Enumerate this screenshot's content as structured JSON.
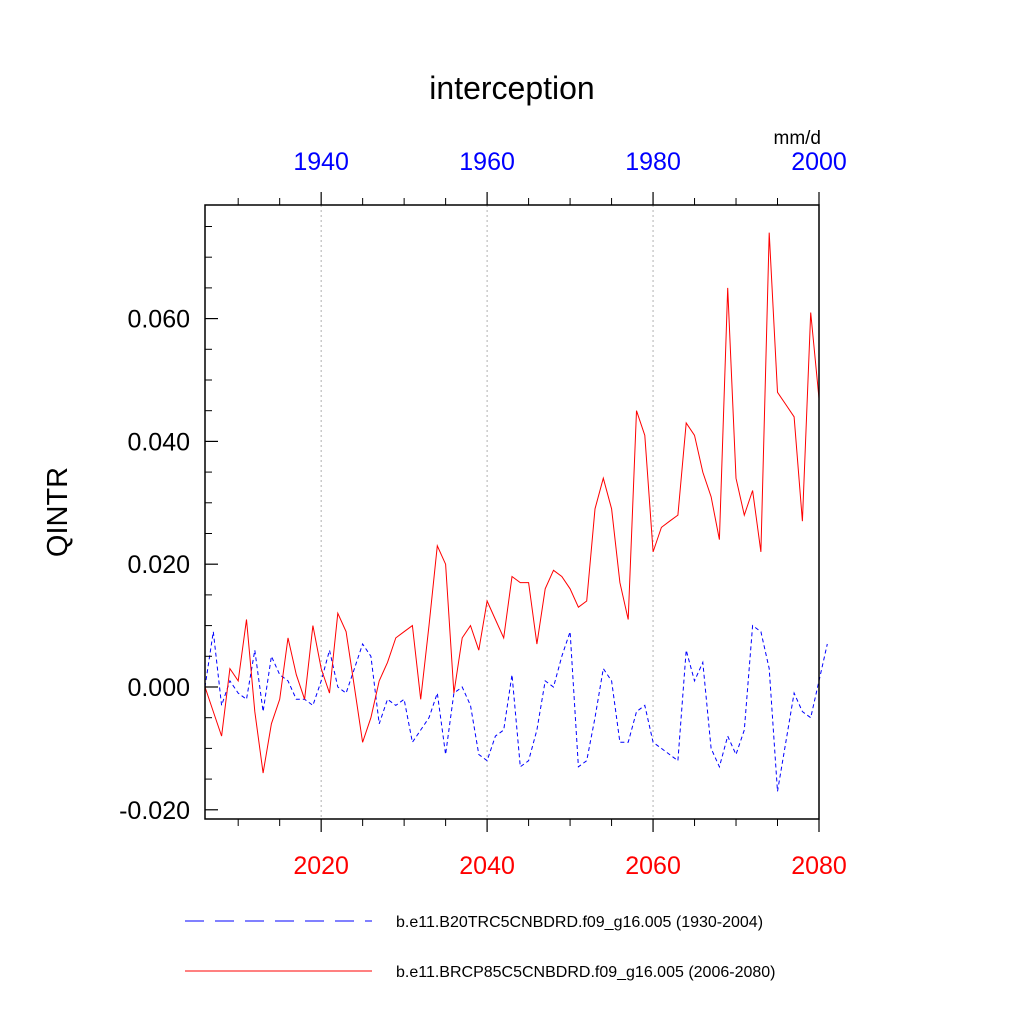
{
  "chart_data": {
    "type": "line",
    "title": "interception",
    "ylabel": "QINTR",
    "units": "mm/d",
    "ylim": [
      -0.0215,
      0.0785
    ],
    "yticks": [
      -0.02,
      0.0,
      0.02,
      0.04,
      0.06
    ],
    "ytick_labels": [
      "-0.020",
      "0.000",
      "0.020",
      "0.040",
      "0.060"
    ],
    "top_axis": {
      "color": "#0000ff",
      "xlim": [
        1926,
        2000
      ],
      "ticks": [
        1940,
        1960,
        1980,
        2000
      ],
      "tick_labels": [
        "1940",
        "1960",
        "1980",
        "2000"
      ]
    },
    "bottom_axis": {
      "color": "#ff0000",
      "xlim": [
        2006,
        2080
      ],
      "ticks": [
        2020,
        2040,
        2060,
        2080
      ],
      "tick_labels": [
        "2020",
        "2040",
        "2060",
        "2080"
      ]
    },
    "gridlines_x": [
      2020,
      2040,
      2060
    ],
    "series": [
      {
        "name": "b.e11.B20TRC5CNBDRD.f09_g16.005 (1930-2004)",
        "color": "#0000ff",
        "style": "dashed",
        "axis": "top",
        "x_start": 1926,
        "values": [
          0.0,
          0.009,
          -0.003,
          0.001,
          -0.001,
          -0.002,
          0.006,
          -0.004,
          0.005,
          0.002,
          0.001,
          -0.002,
          -0.002,
          -0.003,
          0.001,
          0.006,
          0.0,
          -0.001,
          0.003,
          0.007,
          0.005,
          -0.006,
          -0.002,
          -0.003,
          -0.002,
          -0.009,
          -0.007,
          -0.005,
          -0.001,
          -0.011,
          -0.001,
          0.0,
          -0.003,
          -0.011,
          -0.012,
          -0.008,
          -0.007,
          0.002,
          -0.013,
          -0.012,
          -0.007,
          0.001,
          0.0,
          0.005,
          0.009,
          -0.013,
          -0.012,
          -0.005,
          0.003,
          0.001,
          -0.009,
          -0.009,
          -0.004,
          -0.003,
          -0.009,
          -0.01,
          -0.011,
          -0.012,
          0.006,
          0.001,
          0.004,
          -0.01,
          -0.013,
          -0.008,
          -0.011,
          -0.007,
          0.01,
          0.009,
          0.003,
          -0.017,
          -0.009,
          -0.001,
          -0.004,
          -0.005,
          0.001,
          0.007
        ]
      },
      {
        "name": "b.e11.BRCP85C5CNBDRD.f09_g16.005 (2006-2080)",
        "color": "#ff0000",
        "style": "solid",
        "axis": "bottom",
        "x_start": 2006,
        "values": [
          0.0,
          -0.004,
          -0.008,
          0.003,
          0.001,
          0.011,
          -0.004,
          -0.014,
          -0.006,
          -0.002,
          0.008,
          0.002,
          -0.002,
          0.01,
          0.003,
          -0.001,
          0.012,
          0.009,
          0.0,
          -0.009,
          -0.005,
          0.001,
          0.004,
          0.008,
          0.009,
          0.01,
          -0.002,
          0.01,
          0.023,
          0.02,
          -0.001,
          0.008,
          0.01,
          0.006,
          0.014,
          0.011,
          0.008,
          0.018,
          0.017,
          0.017,
          0.007,
          0.016,
          0.019,
          0.018,
          0.016,
          0.013,
          0.014,
          0.029,
          0.034,
          0.029,
          0.017,
          0.011,
          0.045,
          0.041,
          0.022,
          0.026,
          0.027,
          0.028,
          0.043,
          0.041,
          0.035,
          0.031,
          0.024,
          0.065,
          0.034,
          0.028,
          0.032,
          0.022,
          0.074,
          0.048,
          0.046,
          0.044,
          0.027,
          0.061,
          0.047
        ]
      }
    ],
    "legend": [
      {
        "label": "b.e11.B20TRC5CNBDRD.f09_g16.005 (1930-2004)",
        "color": "#0000ff",
        "style": "dashed"
      },
      {
        "label": "b.e11.BRCP85C5CNBDRD.f09_g16.005 (2006-2080)",
        "color": "#ff0000",
        "style": "solid"
      }
    ],
    "legend_position": "bottom"
  }
}
